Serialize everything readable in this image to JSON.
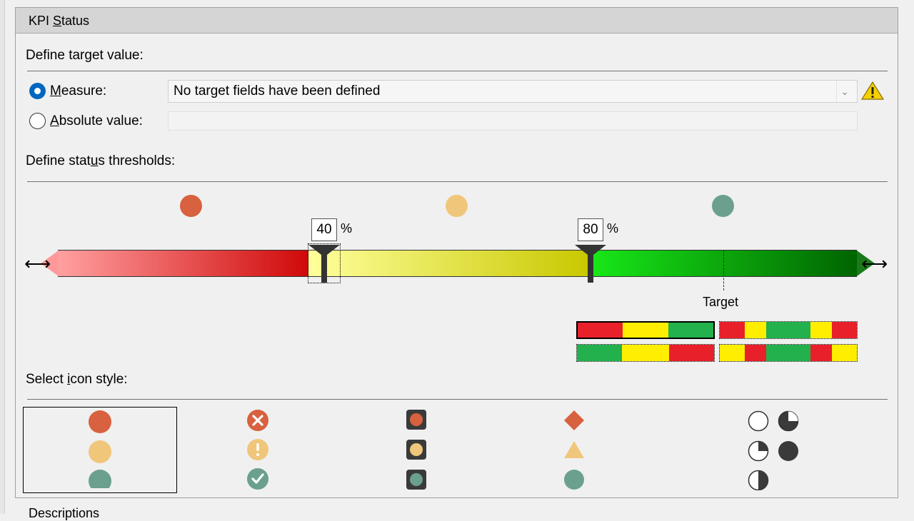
{
  "panel": {
    "title": "KPI Status"
  },
  "target": {
    "heading": "Define target value:",
    "measure_label": "Measure:",
    "measure_value": "No target fields have been defined",
    "absolute_label": "Absolute value:",
    "absolute_value": "",
    "selected_option": "measure"
  },
  "thresholds": {
    "heading": "Define status thresholds:",
    "low_value": "40",
    "high_value": "80",
    "unit": "%",
    "target_label": "Target",
    "status_colors": [
      "#d8613f",
      "#f0c67a",
      "#6ba08e"
    ]
  },
  "patterns": {
    "selected": "red-yellow-green",
    "options": [
      [
        "#e8202a",
        "#ffee00",
        "#22b14c"
      ],
      [
        "#e8202a",
        "#ffee00",
        "#22b14c",
        "#22b14c",
        "#ffee00",
        "#e8202a"
      ],
      [
        "#22b14c",
        "#ffee00",
        "#e8202a"
      ],
      [
        "#ffee00",
        "#e8202a",
        "#22b14c",
        "#22b14c",
        "#e8202a",
        "#ffee00"
      ]
    ]
  },
  "icon_style": {
    "heading": "Select icon style:",
    "styles": [
      "circles",
      "symbols-circled",
      "framed-squares",
      "shapes",
      "pie-quarters"
    ],
    "selected": "circles"
  },
  "footer": {
    "label": "Descriptions"
  },
  "colors": {
    "red": "#d8613f",
    "amber": "#f0c67a",
    "green": "#6ba08e",
    "accent": "#0067c0"
  }
}
